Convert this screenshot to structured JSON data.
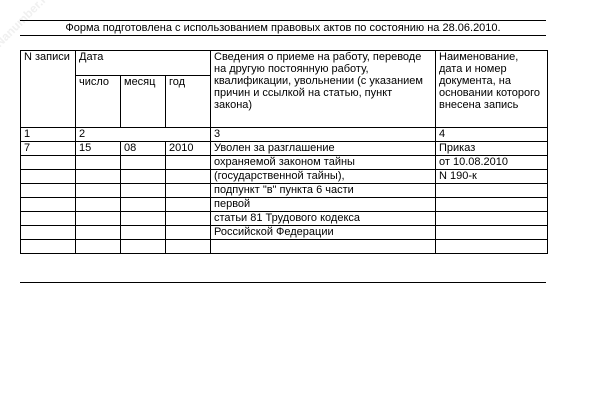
{
  "watermark": "Nanumber.ru",
  "note": "Форма подготовлена с использованием правовых актов по состоянию на 28.06.2010.",
  "table": {
    "headers": {
      "record_no": "N записи",
      "date": "Дата",
      "day": "число",
      "month": "месяц",
      "year": "год",
      "info": "Сведения о приеме на работу, переводе на другую постоянную работу, квалификации, увольнении (с указанием причин и ссылкой на статью, пункт закона)",
      "document": "Наименование, дата и номер документа, на основании которого внесена запись"
    },
    "numbers": [
      "1",
      "2",
      "3",
      "4"
    ],
    "rows": [
      {
        "no": "7",
        "day": "15",
        "month": "08",
        "year": "2010",
        "info": "Уволен за разглашение",
        "doc": "Приказ"
      },
      {
        "no": "",
        "day": "",
        "month": "",
        "year": "",
        "info": "охраняемой законом тайны",
        "doc": "от 10.08.2010"
      },
      {
        "no": "",
        "day": "",
        "month": "",
        "year": "",
        "info": "(государственной тайны),",
        "doc": "N 190-к"
      },
      {
        "no": "",
        "day": "",
        "month": "",
        "year": "",
        "info": "подпункт \"в\" пункта 6 части",
        "doc": ""
      },
      {
        "no": "",
        "day": "",
        "month": "",
        "year": "",
        "info": "первой",
        "doc": ""
      },
      {
        "no": "",
        "day": "",
        "month": "",
        "year": "",
        "info": "статьи 81 Трудового кодекса",
        "doc": ""
      },
      {
        "no": "",
        "day": "",
        "month": "",
        "year": "",
        "info": "Российской Федерации",
        "doc": ""
      },
      {
        "no": "",
        "day": "",
        "month": "",
        "year": "",
        "info": "",
        "doc": ""
      }
    ]
  }
}
